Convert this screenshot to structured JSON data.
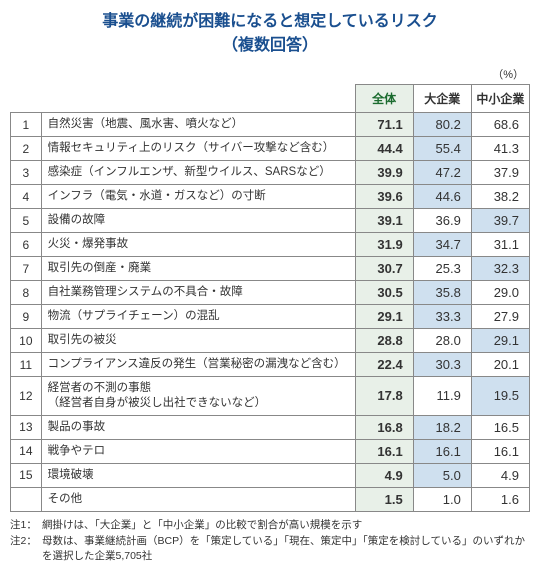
{
  "title_line1": "事業の継続が困難になると想定しているリスク",
  "title_line2": "（複数回答）",
  "unit": "（%）",
  "headers": {
    "total": "全体",
    "large": "大企業",
    "sme": "中小企業"
  },
  "rows": [
    {
      "n": "1",
      "label": "自然災害（地震、風水害、噴火など）",
      "total": "71.1",
      "large": "80.2",
      "sme": "68.6",
      "hl": "large"
    },
    {
      "n": "2",
      "label": "情報セキュリティ上のリスク（サイバー攻撃など含む）",
      "total": "44.4",
      "large": "55.4",
      "sme": "41.3",
      "hl": "large"
    },
    {
      "n": "3",
      "label": "感染症（インフルエンザ、新型ウイルス、SARSなど）",
      "total": "39.9",
      "large": "47.2",
      "sme": "37.9",
      "hl": "large"
    },
    {
      "n": "4",
      "label": "インフラ（電気・水道・ガスなど）の寸断",
      "total": "39.6",
      "large": "44.6",
      "sme": "38.2",
      "hl": "large"
    },
    {
      "n": "5",
      "label": "設備の故障",
      "total": "39.1",
      "large": "36.9",
      "sme": "39.7",
      "hl": "sme"
    },
    {
      "n": "6",
      "label": "火災・爆発事故",
      "total": "31.9",
      "large": "34.7",
      "sme": "31.1",
      "hl": "large"
    },
    {
      "n": "7",
      "label": "取引先の倒産・廃業",
      "total": "30.7",
      "large": "25.3",
      "sme": "32.3",
      "hl": "sme"
    },
    {
      "n": "8",
      "label": "自社業務管理システムの不具合・故障",
      "total": "30.5",
      "large": "35.8",
      "sme": "29.0",
      "hl": "large"
    },
    {
      "n": "9",
      "label": "物流（サプライチェーン）の混乱",
      "total": "29.1",
      "large": "33.3",
      "sme": "27.9",
      "hl": "large"
    },
    {
      "n": "10",
      "label": "取引先の被災",
      "total": "28.8",
      "large": "28.0",
      "sme": "29.1",
      "hl": "sme"
    },
    {
      "n": "11",
      "label": "コンプライアンス違反の発生（営業秘密の漏洩など含む）",
      "total": "22.4",
      "large": "30.3",
      "sme": "20.1",
      "hl": "large"
    },
    {
      "n": "12",
      "label": "経営者の不測の事態\n（経営者自身が被災し出社できないなど）",
      "total": "17.8",
      "large": "11.9",
      "sme": "19.5",
      "hl": "sme"
    },
    {
      "n": "13",
      "label": "製品の事故",
      "total": "16.8",
      "large": "18.2",
      "sme": "16.5",
      "hl": "large"
    },
    {
      "n": "14",
      "label": "戦争やテロ",
      "total": "16.1",
      "large": "16.1",
      "sme": "16.1",
      "hl": "large"
    },
    {
      "n": "15",
      "label": "環境破壊",
      "total": "4.9",
      "large": "5.0",
      "sme": "4.9",
      "hl": "large"
    },
    {
      "n": "",
      "label": "その他",
      "total": "1.5",
      "large": "1.0",
      "sme": "1.6",
      "hl": ""
    }
  ],
  "notes": [
    {
      "key": "注1：",
      "text": "網掛けは、「大企業」と「中小企業」の比較で割合が高い規模を示す"
    },
    {
      "key": "注2：",
      "text": "母数は、事業継続計画（BCP）を「策定している」「現在、策定中」「策定を検討している」のいずれかを選択した企業5,705社"
    }
  ],
  "style": {
    "title_color": "#1a4f8f",
    "total_bg": "#e8f0e8",
    "total_color": "#1a6b2e",
    "shade_bg": "#cfe0ef",
    "border_color": "#888"
  }
}
